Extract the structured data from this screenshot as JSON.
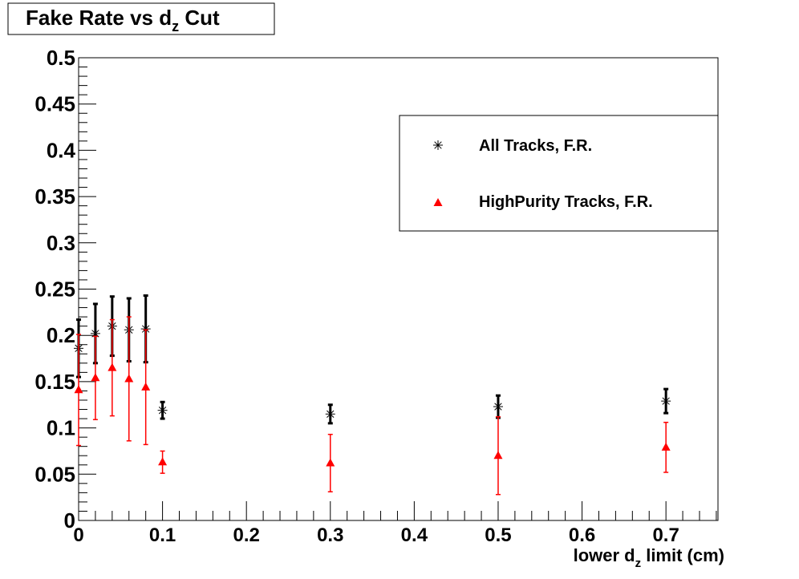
{
  "chart_data": {
    "type": "scatter",
    "title": {
      "pre": "Fake Rate vs d",
      "sub": "z",
      "post": " Cut"
    },
    "xlabel": {
      "pre": "lower d",
      "sub": "z",
      "post": " limit (cm)"
    },
    "ylabel": "",
    "xlim": [
      0,
      0.762
    ],
    "ylim": [
      0,
      0.5
    ],
    "grid": false,
    "legend_position": "top-right",
    "x_ticks": [
      "0",
      "0.1",
      "0.2",
      "0.3",
      "0.4",
      "0.5",
      "0.6",
      "0.7"
    ],
    "y_ticks": [
      "0",
      "0.05",
      "0.1",
      "0.15",
      "0.2",
      "0.25",
      "0.3",
      "0.35",
      "0.4",
      "0.45",
      "0.5"
    ],
    "series": [
      {
        "name": "All Tracks, F.R.",
        "color": "#000000",
        "marker": "star",
        "x": [
          0,
          0.02,
          0.04,
          0.06,
          0.08,
          0.1,
          0.3,
          0.5,
          0.7
        ],
        "y": [
          0.186,
          0.202,
          0.21,
          0.206,
          0.207,
          0.119,
          0.115,
          0.123,
          0.129
        ],
        "yerr": [
          0.031,
          0.032,
          0.032,
          0.034,
          0.036,
          0.009,
          0.01,
          0.012,
          0.013
        ]
      },
      {
        "name": "HighPurity Tracks, F.R.",
        "color": "#ff0000",
        "marker": "triangle",
        "x": [
          0,
          0.02,
          0.04,
          0.06,
          0.08,
          0.1,
          0.3,
          0.5,
          0.7
        ],
        "y": [
          0.141,
          0.154,
          0.165,
          0.153,
          0.144,
          0.063,
          0.062,
          0.07,
          0.079
        ],
        "yerr": [
          0.06,
          0.045,
          0.052,
          0.067,
          0.062,
          0.012,
          0.031,
          0.042,
          0.027
        ]
      }
    ]
  }
}
